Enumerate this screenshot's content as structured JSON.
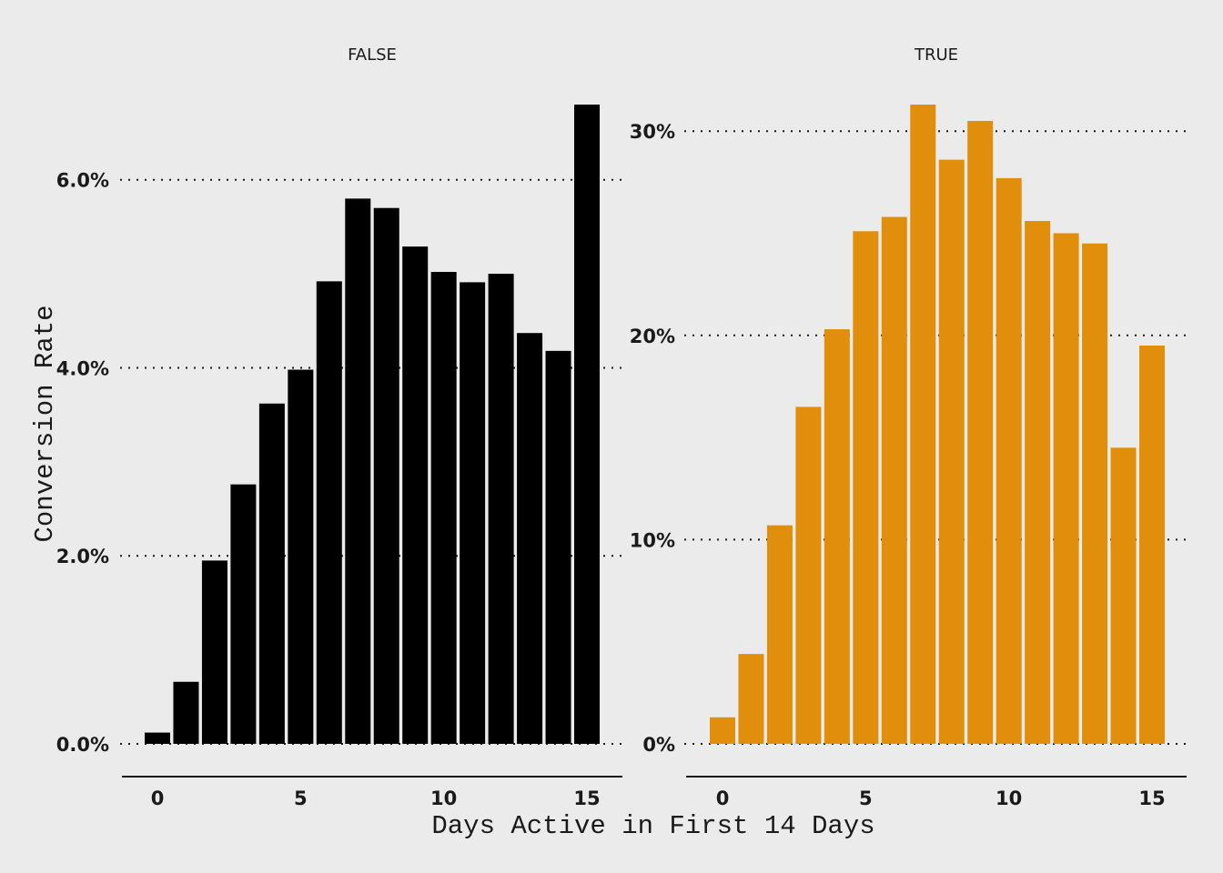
{
  "chart_data": {
    "type": "bar",
    "xlabel": "Days Active in First 14 Days",
    "ylabel": "Conversion Rate",
    "grid": "horizontal dotted",
    "facets": [
      {
        "name": "FALSE",
        "color": "#000000",
        "x": [
          0,
          1,
          2,
          3,
          4,
          5,
          6,
          7,
          8,
          9,
          10,
          11,
          12,
          13,
          14,
          15
        ],
        "values": [
          0.0012,
          0.0066,
          0.0195,
          0.0276,
          0.0362,
          0.0398,
          0.0492,
          0.058,
          0.057,
          0.0529,
          0.0502,
          0.0491,
          0.05,
          0.0437,
          0.0418,
          0.068
        ],
        "ylim": [
          0,
          0.068
        ],
        "yticks": [
          0.0,
          0.02,
          0.04,
          0.06
        ],
        "ytick_labels": [
          "0.0%",
          "2.0%",
          "4.0%",
          "6.0%"
        ],
        "xticks": [
          0,
          5,
          10,
          15
        ],
        "xtick_labels": [
          "0",
          "5",
          "10",
          "15"
        ]
      },
      {
        "name": "TRUE",
        "color": "#e08e0b",
        "x": [
          0,
          1,
          2,
          3,
          4,
          5,
          6,
          7,
          8,
          9,
          10,
          11,
          12,
          13,
          14,
          15
        ],
        "values": [
          0.013,
          0.044,
          0.107,
          0.165,
          0.203,
          0.251,
          0.258,
          0.313,
          0.286,
          0.305,
          0.277,
          0.256,
          0.25,
          0.245,
          0.145,
          0.195
        ],
        "ylim": [
          0,
          0.313
        ],
        "yticks": [
          0.0,
          0.1,
          0.2,
          0.3
        ],
        "ytick_labels": [
          "0%",
          "10%",
          "20%",
          "30%"
        ],
        "xticks": [
          0,
          5,
          10,
          15
        ],
        "xtick_labels": [
          "0",
          "5",
          "10",
          "15"
        ]
      }
    ]
  }
}
